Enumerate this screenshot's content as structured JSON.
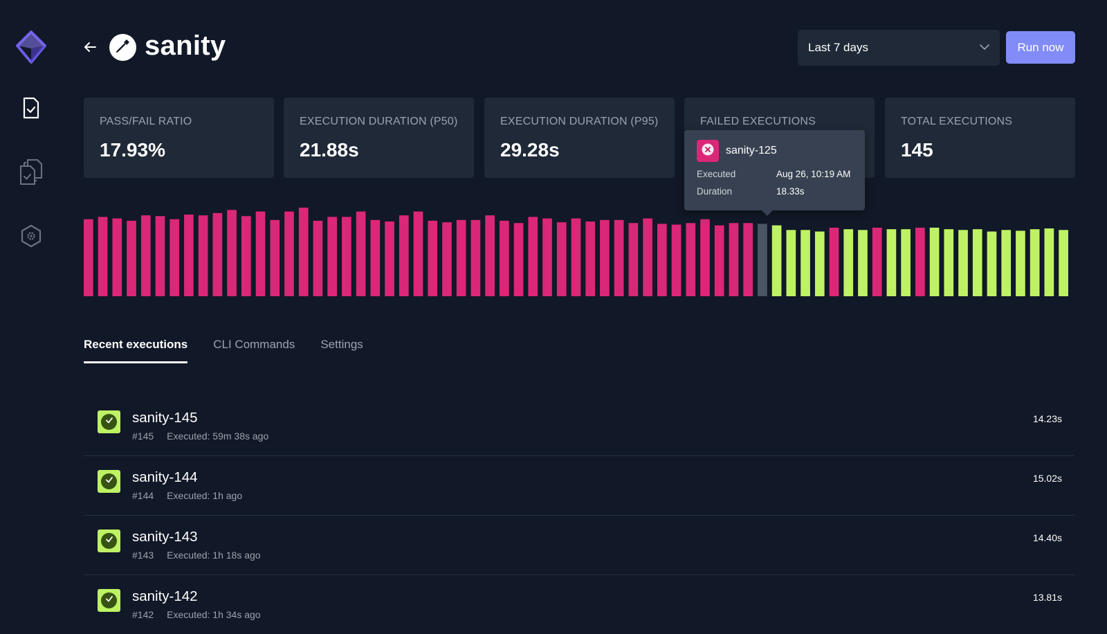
{
  "colors": {
    "background": "#111827",
    "card": "#1f2937",
    "fail": "#db2777",
    "pass": "#bef264",
    "hover": "#4b5563",
    "accent": "#818cf8"
  },
  "sidebar": {
    "logo_icon": "cube-logo-icon",
    "items": [
      {
        "icon": "file-check-icon",
        "active": true
      },
      {
        "icon": "files-check-icon",
        "active": false
      },
      {
        "icon": "hexagon-settings-icon",
        "active": false
      }
    ]
  },
  "header": {
    "back_icon": "arrow-left-icon",
    "test_icon": "pen-nib-icon",
    "title": "sanity",
    "period": {
      "selected": "Last 7 days",
      "icon": "chevron-down-icon"
    },
    "run_label": "Run now"
  },
  "metrics": [
    {
      "label": "PASS/FAIL RATIO",
      "value": "17.93%"
    },
    {
      "label": "EXECUTION DURATION (P50)",
      "value": "21.88s"
    },
    {
      "label": "EXECUTION DURATION (P95)",
      "value": "29.28s"
    },
    {
      "label": "FAILED EXECUTIONS",
      "value": ""
    },
    {
      "label": "TOTAL EXECUTIONS",
      "value": "145"
    }
  ],
  "tooltip": {
    "name": "sanity-125",
    "executed_label": "Executed",
    "executed_value": "Aug 26, 10:19 AM",
    "duration_label": "Duration",
    "duration_value": "18.33s"
  },
  "chart_data": {
    "type": "bar",
    "ylim": [
      0,
      1.15
    ],
    "grid": false,
    "highlighted_index": 47,
    "values": [
      1.0,
      1.03,
      1.01,
      0.98,
      1.05,
      1.04,
      1.0,
      1.06,
      1.05,
      1.08,
      1.12,
      1.04,
      1.1,
      0.99,
      1.1,
      1.15,
      0.98,
      1.03,
      1.03,
      1.1,
      0.99,
      0.97,
      1.05,
      1.1,
      0.98,
      0.96,
      0.99,
      0.99,
      1.05,
      0.98,
      0.95,
      1.03,
      1.01,
      0.96,
      1.01,
      0.97,
      0.99,
      0.99,
      0.95,
      1.01,
      0.94,
      0.93,
      0.95,
      1.0,
      0.92,
      0.95,
      0.95,
      0.94,
      0.92,
      0.86,
      0.86,
      0.84,
      0.89,
      0.87,
      0.86,
      0.89,
      0.87,
      0.87,
      0.89,
      0.89,
      0.87,
      0.86,
      0.87,
      0.84,
      0.86,
      0.85,
      0.87,
      0.88,
      0.86
    ],
    "status": [
      "fail",
      "fail",
      "fail",
      "fail",
      "fail",
      "fail",
      "fail",
      "fail",
      "fail",
      "fail",
      "fail",
      "fail",
      "fail",
      "fail",
      "fail",
      "fail",
      "fail",
      "fail",
      "fail",
      "fail",
      "fail",
      "fail",
      "fail",
      "fail",
      "fail",
      "fail",
      "fail",
      "fail",
      "fail",
      "fail",
      "fail",
      "fail",
      "fail",
      "fail",
      "fail",
      "fail",
      "fail",
      "fail",
      "fail",
      "fail",
      "fail",
      "fail",
      "fail",
      "fail",
      "fail",
      "fail",
      "fail",
      "fail",
      "pass",
      "pass",
      "pass",
      "pass",
      "fail",
      "pass",
      "pass",
      "fail",
      "pass",
      "pass",
      "fail",
      "pass",
      "pass",
      "pass",
      "pass",
      "pass",
      "pass",
      "pass",
      "pass",
      "pass",
      "pass"
    ]
  },
  "tabs": [
    {
      "label": "Recent executions",
      "active": true
    },
    {
      "label": "CLI Commands",
      "active": false
    },
    {
      "label": "Settings",
      "active": false
    }
  ],
  "executions": [
    {
      "name": "sanity-145",
      "number": "#145",
      "executed": "Executed: 59m 38s ago",
      "duration": "14.23s",
      "status": "passed"
    },
    {
      "name": "sanity-144",
      "number": "#144",
      "executed": "Executed: 1h ago",
      "duration": "15.02s",
      "status": "passed"
    },
    {
      "name": "sanity-143",
      "number": "#143",
      "executed": "Executed: 1h 18s ago",
      "duration": "14.40s",
      "status": "passed"
    },
    {
      "name": "sanity-142",
      "number": "#142",
      "executed": "Executed: 1h 34s ago",
      "duration": "13.81s",
      "status": "passed"
    }
  ]
}
